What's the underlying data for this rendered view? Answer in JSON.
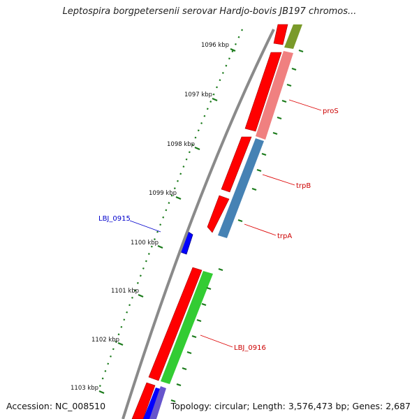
{
  "title": "Leptospira borgpetersenii serovar Hardjo-bovis JB197 chromos...",
  "footer": {
    "accession": "Accession: NC_008510",
    "topology": "Topology: circular; Length: 3,576,473 bp; Genes: 2,687"
  },
  "kbp_ticks": [
    "1096 kbp",
    "1097 kbp",
    "1098 kbp",
    "1099 kbp",
    "1100 kbp",
    "1101 kbp",
    "1102 kbp",
    "1103 kbp"
  ],
  "gene_labels": {
    "proS": "proS",
    "trpB": "trpB",
    "trpA": "trpA",
    "lbj0915": "LBJ_0915",
    "lbj0916": "LBJ_0916"
  },
  "colors": {
    "forward_cds": "#ff0000",
    "reverse_cds": "#0000ff",
    "backbone": "#888888",
    "tick": "#1a7a1a",
    "cog_olive": "#7a9a2a",
    "cog_pink": "#f08080",
    "cog_steelblue": "#4682b4",
    "cog_green": "#33cc33",
    "cog_purple": "#6655cc",
    "label_red": "#cc0000",
    "label_blue": "#0000cc"
  }
}
